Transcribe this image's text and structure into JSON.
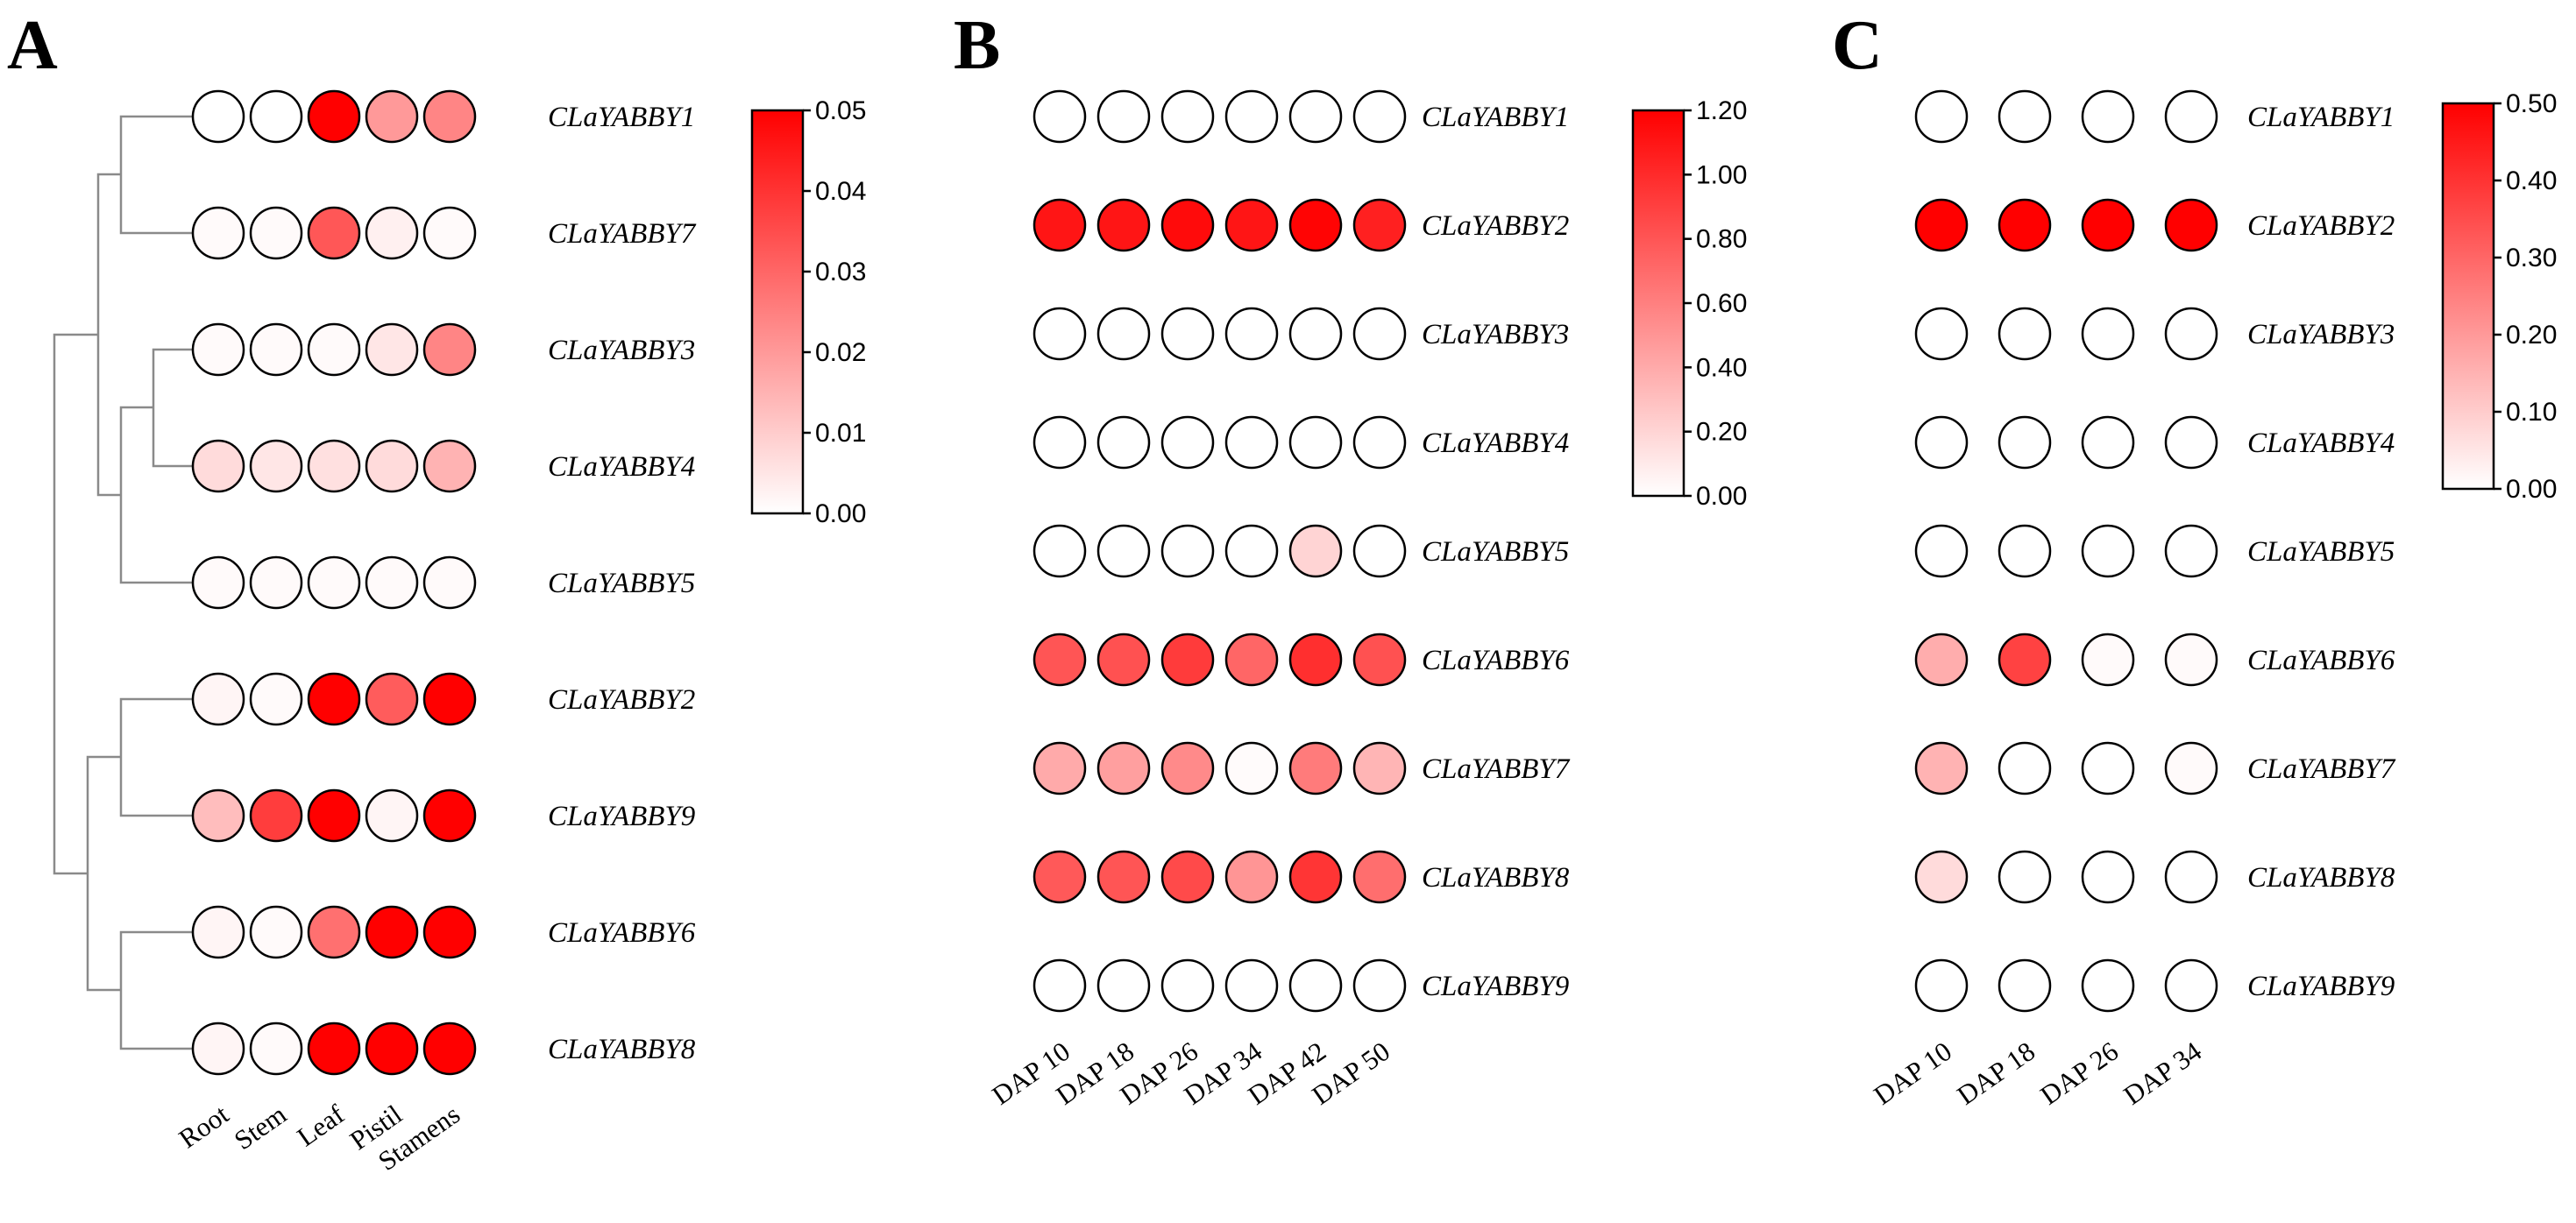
{
  "chart_data": [
    {
      "panel": "A",
      "type": "heatmap",
      "columns": [
        "Root",
        "Stem",
        "Leaf",
        "Pistil",
        "Stamens"
      ],
      "rows": [
        "CLaYABBY1",
        "CLaYABBY7",
        "CLaYABBY3",
        "CLaYABBY4",
        "CLaYABBY5",
        "CLaYABBY2",
        "CLaYABBY9",
        "CLaYABBY6",
        "CLaYABBY8"
      ],
      "values": [
        [
          0.0,
          0.0,
          0.05,
          0.02,
          0.024
        ],
        [
          0.001,
          0.001,
          0.033,
          0.003,
          0.001
        ],
        [
          0.001,
          0.001,
          0.001,
          0.005,
          0.024
        ],
        [
          0.007,
          0.005,
          0.006,
          0.007,
          0.015
        ],
        [
          0.001,
          0.001,
          0.001,
          0.001,
          0.001
        ],
        [
          0.002,
          0.001,
          0.05,
          0.032,
          0.05
        ],
        [
          0.013,
          0.038,
          0.05,
          0.002,
          0.05
        ],
        [
          0.002,
          0.001,
          0.028,
          0.05,
          0.05
        ],
        [
          0.002,
          0.001,
          0.05,
          0.05,
          0.05
        ]
      ],
      "scale": {
        "min": 0.0,
        "max": 0.05,
        "ticks": [
          "0.00",
          "0.01",
          "0.02",
          "0.03",
          "0.04",
          "0.05"
        ]
      },
      "dendrogram": true
    },
    {
      "panel": "B",
      "type": "heatmap",
      "columns": [
        "DAP 10",
        "DAP 18",
        "DAP 26",
        "DAP 34",
        "DAP 42",
        "DAP 50"
      ],
      "rows": [
        "CLaYABBY1",
        "CLaYABBY2",
        "CLaYABBY3",
        "CLaYABBY4",
        "CLaYABBY5",
        "CLaYABBY6",
        "CLaYABBY7",
        "CLaYABBY8",
        "CLaYABBY9"
      ],
      "values": [
        [
          0.0,
          0.0,
          0.0,
          0.0,
          0.0,
          0.0
        ],
        [
          1.1,
          1.1,
          1.15,
          1.1,
          1.18,
          1.05
        ],
        [
          0.0,
          0.0,
          0.0,
          0.0,
          0.0,
          0.0
        ],
        [
          0.0,
          0.0,
          0.0,
          0.0,
          0.0,
          0.0
        ],
        [
          0.0,
          0.0,
          0.0,
          0.0,
          0.2,
          0.0
        ],
        [
          0.8,
          0.82,
          0.92,
          0.72,
          0.98,
          0.82
        ],
        [
          0.4,
          0.45,
          0.55,
          0.02,
          0.62,
          0.35
        ],
        [
          0.78,
          0.8,
          0.85,
          0.5,
          0.95,
          0.68
        ],
        [
          0.0,
          0.0,
          0.0,
          0.0,
          0.0,
          0.0
        ]
      ],
      "scale": {
        "min": 0.0,
        "max": 1.2,
        "ticks": [
          "0.00",
          "0.20",
          "0.40",
          "0.60",
          "0.80",
          "1.00",
          "1.20"
        ]
      },
      "dendrogram": false
    },
    {
      "panel": "C",
      "type": "heatmap",
      "columns": [
        "DAP 10",
        "DAP 18",
        "DAP 26",
        "DAP 34"
      ],
      "rows": [
        "CLaYABBY1",
        "CLaYABBY2",
        "CLaYABBY3",
        "CLaYABBY4",
        "CLaYABBY5",
        "CLaYABBY6",
        "CLaYABBY7",
        "CLaYABBY8",
        "CLaYABBY9"
      ],
      "values": [
        [
          0.0,
          0.0,
          0.0,
          0.0
        ],
        [
          0.5,
          0.5,
          0.5,
          0.5
        ],
        [
          0.0,
          0.0,
          0.0,
          0.0
        ],
        [
          0.0,
          0.0,
          0.0,
          0.0
        ],
        [
          0.0,
          0.0,
          0.0,
          0.0
        ],
        [
          0.16,
          0.37,
          0.01,
          0.01
        ],
        [
          0.15,
          0.0,
          0.0,
          0.01
        ],
        [
          0.07,
          0.0,
          0.0,
          0.0
        ],
        [
          0.0,
          0.0,
          0.0,
          0.0
        ]
      ],
      "scale": {
        "min": 0.0,
        "max": 0.5,
        "ticks": [
          "0.00",
          "0.10",
          "0.20",
          "0.30",
          "0.40",
          "0.50"
        ]
      },
      "dendrogram": false
    }
  ],
  "colors": {
    "low": "#ffffff",
    "high": "#ff0000",
    "stroke": "#000000",
    "tree": "#8a8a8a"
  }
}
